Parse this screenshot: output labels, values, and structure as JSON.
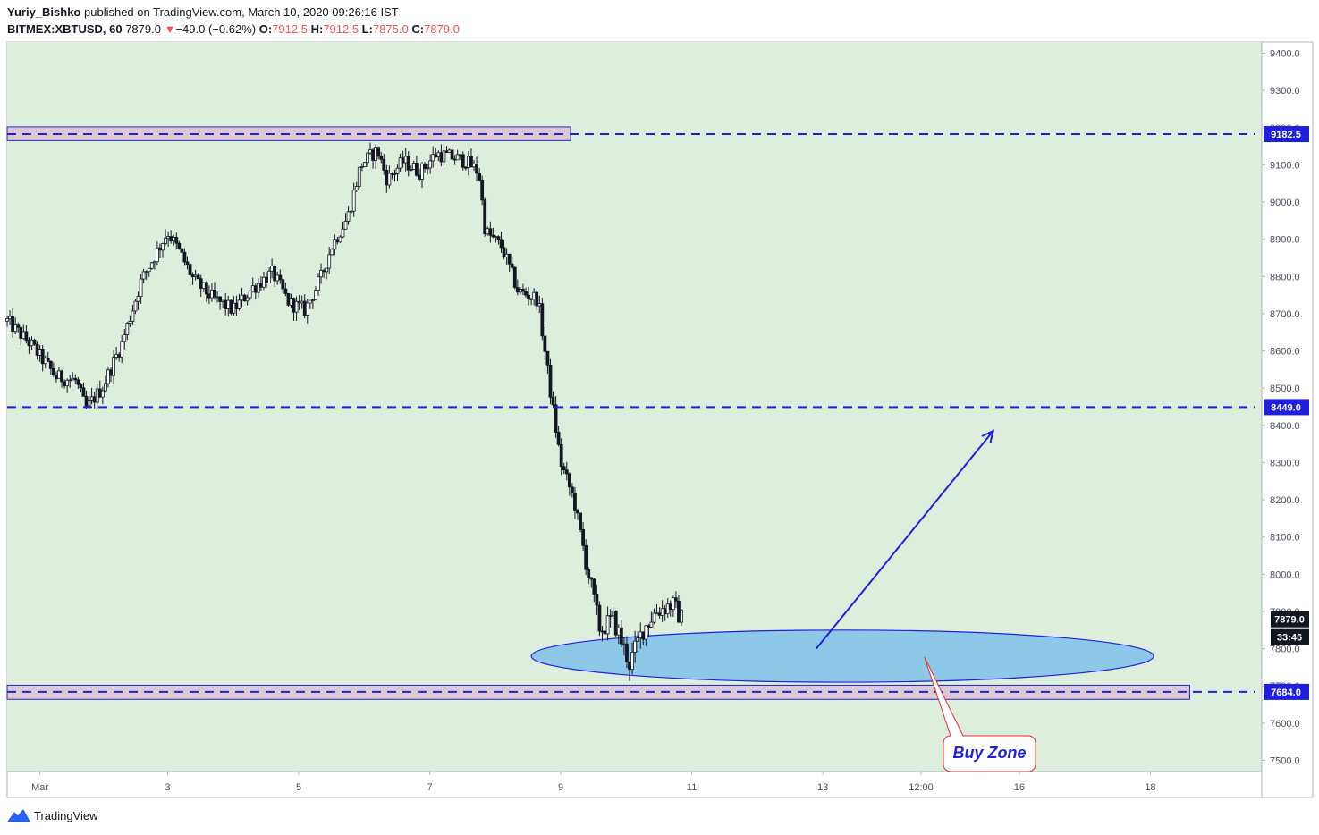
{
  "header": {
    "author": "Yuriy_Bishko",
    "published_text": "published on TradingView.com, March 10, 2020 09:26:16 IST",
    "symbol": "BITMEX:XBTUSD, 60",
    "last": "7879.0",
    "change_arrow": "▼",
    "change": "−49.0 (−0.62%)",
    "o_label": "O:",
    "o_value": "7912.5",
    "h_label": "H:",
    "h_value": "7912.5",
    "l_label": "L:",
    "l_value": "7875.0",
    "c_label": "C:",
    "c_value": "7879.0"
  },
  "footer": {
    "brand": "TradingView",
    "icon": "tradingview-logo-icon"
  },
  "colors": {
    "plot_bg": "#ddeedc",
    "candle": "#131722",
    "level_line": "#1f1fe0",
    "zone_fill": "#ddc9cf",
    "ellipse_fill": "#8ec8e8",
    "arrow": "#1f1fe0",
    "callout_border": "#e03030",
    "callout_text": "#1f1fe0",
    "price_tag": "#1f1fe0",
    "last_tag": "#131722"
  },
  "chart_data": {
    "type": "candlestick",
    "y_axis_ticks": [
      "9400.0",
      "9300.0",
      "9200.0",
      "9100.0",
      "9000.0",
      "8900.0",
      "8800.0",
      "8700.0",
      "8600.0",
      "8500.0",
      "8400.0",
      "8300.0",
      "8200.0",
      "8100.0",
      "8000.0",
      "7900.0",
      "7800.0",
      "7700.0",
      "7600.0",
      "7500.0"
    ],
    "x_axis_ticks": [
      {
        "label": "Mar",
        "day": 1.05
      },
      {
        "label": "3",
        "day": 3
      },
      {
        "label": "5",
        "day": 5
      },
      {
        "label": "7",
        "day": 7
      },
      {
        "label": "9",
        "day": 9
      },
      {
        "label": "11",
        "day": 11
      },
      {
        "label": "13",
        "day": 13
      },
      {
        "label": "12:00",
        "day": 14.5
      },
      {
        "label": "16",
        "day": 16
      },
      {
        "label": "18",
        "day": 18
      }
    ],
    "ylim": [
      7470,
      9430
    ],
    "xlim": [
      0.55,
      19.7
    ],
    "price_path": [
      [
        0.55,
        8680
      ],
      [
        0.9,
        8620
      ],
      [
        1.3,
        8530
      ],
      [
        1.6,
        8520
      ],
      [
        1.75,
        8445
      ],
      [
        2.0,
        8500
      ],
      [
        2.3,
        8620
      ],
      [
        2.6,
        8790
      ],
      [
        3.0,
        8920
      ],
      [
        3.2,
        8860
      ],
      [
        3.4,
        8790
      ],
      [
        3.7,
        8740
      ],
      [
        4.0,
        8710
      ],
      [
        4.3,
        8770
      ],
      [
        4.6,
        8810
      ],
      [
        4.85,
        8730
      ],
      [
        5.1,
        8710
      ],
      [
        5.35,
        8800
      ],
      [
        5.5,
        8880
      ],
      [
        5.75,
        8960
      ],
      [
        5.95,
        9100
      ],
      [
        6.2,
        9140
      ],
      [
        6.35,
        9060
      ],
      [
        6.6,
        9110
      ],
      [
        6.85,
        9080
      ],
      [
        7.1,
        9130
      ],
      [
        7.35,
        9120
      ],
      [
        7.55,
        9110
      ],
      [
        7.75,
        9080
      ],
      [
        7.85,
        8920
      ],
      [
        8.1,
        8880
      ],
      [
        8.35,
        8760
      ],
      [
        8.65,
        8740
      ],
      [
        8.85,
        8480
      ],
      [
        9.0,
        8300
      ],
      [
        9.2,
        8200
      ],
      [
        9.4,
        8020
      ],
      [
        9.6,
        7850
      ],
      [
        9.8,
        7880
      ],
      [
        10.05,
        7760
      ],
      [
        10.25,
        7850
      ],
      [
        10.45,
        7900
      ],
      [
        10.7,
        7920
      ],
      [
        10.85,
        7879
      ]
    ],
    "last_price": "7879.0",
    "countdown": "33:46",
    "horizontal_levels": [
      {
        "label": "9182.5",
        "price": 9182.5
      },
      {
        "label": "8449.0",
        "price": 8449.0
      },
      {
        "label": "7684.0",
        "price": 7684.0
      }
    ],
    "resistance_zone": {
      "price_low": 9165,
      "price_high": 9202,
      "day_start": 0.55,
      "day_end": 9.15
    },
    "support_zone": {
      "price_low": 7664,
      "price_high": 7702,
      "day_start": 0.55,
      "day_end": 18.6
    },
    "buy_zone_ellipse": {
      "center_day": 13.3,
      "center_price": 7780,
      "half_width_days": 4.75,
      "half_height_price": 70
    },
    "projection_arrow": {
      "from_day": 12.9,
      "from_price": 7800,
      "to_day": 15.6,
      "to_price": 8385
    },
    "callout": {
      "text": "Buy Zone",
      "anchor_day": 14.55,
      "anchor_price": 7778
    }
  }
}
